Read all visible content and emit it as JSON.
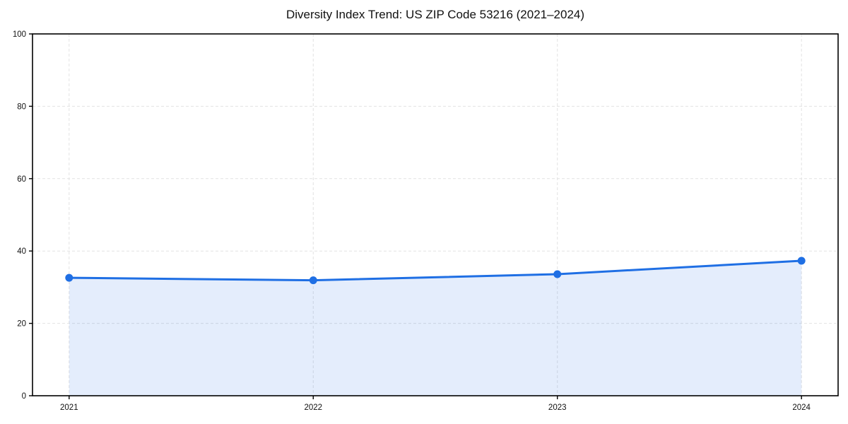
{
  "chart_data": {
    "type": "line",
    "title": "Diversity Index Trend: US ZIP Code 53216 (2021–2024)",
    "x": [
      2021,
      2022,
      2023,
      2024
    ],
    "xtick_labels": [
      "2021",
      "2022",
      "2023",
      "2024"
    ],
    "series": [
      {
        "name": "Diversity Index",
        "values": [
          32.6,
          31.9,
          33.6,
          37.3
        ]
      }
    ],
    "xlabel": "",
    "ylabel": "",
    "ylim": [
      0,
      100
    ],
    "yticks": [
      0,
      20,
      40,
      60,
      80,
      100
    ],
    "ytick_labels": [
      "0",
      "20",
      "40",
      "60",
      "80",
      "100"
    ],
    "grid": "dashed",
    "legend": "none",
    "area_fill": true,
    "marker": "circle",
    "colors": {
      "line": "#1f6fe4",
      "marker": "#1f6fe4",
      "area": "rgba(31, 111, 228, 0.12)",
      "grid": "#e2e2e2",
      "axis": "#000000",
      "text": "#111111",
      "background": "#ffffff"
    }
  }
}
